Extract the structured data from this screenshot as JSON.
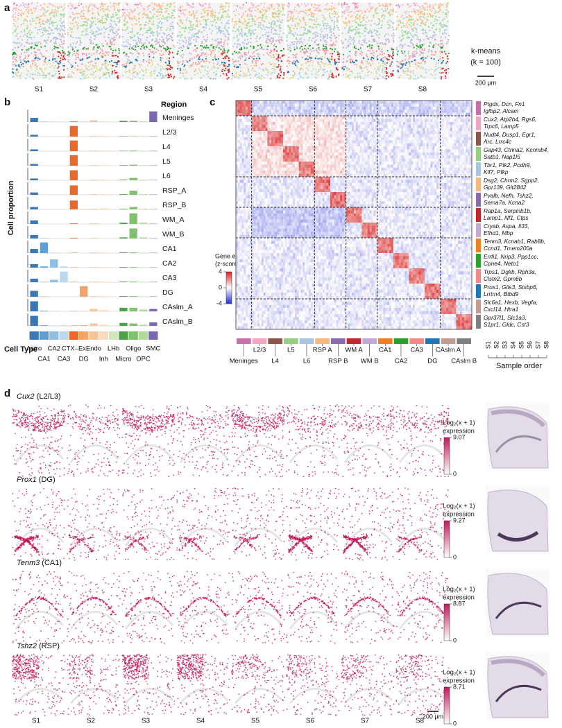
{
  "panel_labels": [
    "a",
    "b",
    "c",
    "d"
  ],
  "samples": [
    "S1",
    "S2",
    "S3",
    "S4",
    "S5",
    "S6",
    "S7",
    "S8"
  ],
  "panel_a": {
    "method_lines": [
      "k-means",
      "(k = 100)"
    ],
    "scale": "200 μm"
  },
  "panel_b": {
    "y_label": "Cell proportion",
    "region_header": "Region",
    "cell_type_header": "Cell Type",
    "regions": [
      "Meninges",
      "L2/3",
      "L4",
      "L5",
      "L6",
      "RSP_A",
      "RSP_B",
      "WM_A",
      "WM_B",
      "CA1",
      "CA2",
      "CA3",
      "DG",
      "CAslm_A",
      "CAslm_B"
    ],
    "cell_types": [
      {
        "name": "Astro",
        "color": "#3b78b4"
      },
      {
        "name": "CA1",
        "color": "#5d9fd2"
      },
      {
        "name": "CA2",
        "color": "#8fc0e4"
      },
      {
        "name": "CA3",
        "color": "#bcd8ee"
      },
      {
        "name": "CTX–Ex",
        "color": "#e8692b"
      },
      {
        "name": "DG",
        "color": "#f3a468"
      },
      {
        "name": "Endo",
        "color": "#f7c596"
      },
      {
        "name": "Inh",
        "color": "#fadcbc"
      },
      {
        "name": "LHb",
        "color": "#cfe6c0"
      },
      {
        "name": "Micro",
        "color": "#4ea14b"
      },
      {
        "name": "Oligo",
        "color": "#80c16c"
      },
      {
        "name": "OPC",
        "color": "#b2daa0"
      },
      {
        "name": "SMC",
        "color": "#7a68b0"
      }
    ],
    "ylim": [
      0,
      1
    ],
    "proportions": [
      [
        0.35,
        0.02,
        0.02,
        0.02,
        0.05,
        0.02,
        0.15,
        0.05,
        0.02,
        0.1,
        0.1,
        0.05,
        0.9
      ],
      [
        0.15,
        0,
        0,
        0,
        0.9,
        0,
        0.05,
        0.05,
        0,
        0.03,
        0.03,
        0.03,
        0.02
      ],
      [
        0.15,
        0,
        0,
        0,
        0.9,
        0,
        0.05,
        0.05,
        0,
        0.03,
        0.05,
        0.03,
        0.02
      ],
      [
        0.15,
        0,
        0,
        0,
        0.9,
        0,
        0.05,
        0.05,
        0,
        0.04,
        0.08,
        0.04,
        0.02
      ],
      [
        0.15,
        0,
        0,
        0,
        0.85,
        0,
        0.05,
        0.05,
        0,
        0.05,
        0.2,
        0.04,
        0.02
      ],
      [
        0.2,
        0,
        0,
        0,
        0.8,
        0,
        0.05,
        0.05,
        0,
        0.05,
        0.35,
        0.05,
        0.02
      ],
      [
        0.2,
        0,
        0,
        0,
        0.75,
        0.02,
        0.05,
        0.08,
        0,
        0.05,
        0.2,
        0.05,
        0.02
      ],
      [
        0.3,
        0,
        0,
        0,
        0.05,
        0,
        0.05,
        0.02,
        0,
        0.1,
        0.9,
        0.1,
        0.02
      ],
      [
        0.3,
        0.02,
        0,
        0,
        0.05,
        0,
        0.05,
        0.02,
        0,
        0.1,
        0.85,
        0.1,
        0.02
      ],
      [
        0.35,
        0.9,
        0.02,
        0.02,
        0.02,
        0,
        0.05,
        0.05,
        0,
        0.05,
        0.05,
        0.03,
        0.02
      ],
      [
        0.3,
        0.1,
        0.7,
        0.1,
        0.02,
        0,
        0.05,
        0.05,
        0,
        0.05,
        0.05,
        0.03,
        0.02
      ],
      [
        0.3,
        0.02,
        0.2,
        0.9,
        0.02,
        0,
        0.05,
        0.05,
        0,
        0.05,
        0.05,
        0.03,
        0.02
      ],
      [
        0.5,
        0.02,
        0,
        0.02,
        0,
        0.9,
        0.05,
        0.05,
        0,
        0.05,
        0.05,
        0.03,
        0.02
      ],
      [
        0.85,
        0.05,
        0.02,
        0.02,
        0.02,
        0.02,
        0.2,
        0.1,
        0,
        0.3,
        0.3,
        0.15,
        0.2
      ],
      [
        0.85,
        0.05,
        0.02,
        0.05,
        0.02,
        0.05,
        0.2,
        0.1,
        0.02,
        0.25,
        0.2,
        0.1,
        0.3
      ]
    ]
  },
  "panel_c": {
    "column_groups": [
      {
        "name": "Meninges",
        "color": "#c96fa8"
      },
      {
        "name": "L2/3",
        "color": "#f2a7bf"
      },
      {
        "name": "L4",
        "color": "#8c564b"
      },
      {
        "name": "L5",
        "color": "#98cf85"
      },
      {
        "name": "L6",
        "color": "#a9c5e2"
      },
      {
        "name": "RSP A",
        "color": "#f5b880"
      },
      {
        "name": "RSP B",
        "color": "#8a6bb0"
      },
      {
        "name": "WM A",
        "color": "#c0262c"
      },
      {
        "name": "WM B",
        "color": "#c4a8d6"
      },
      {
        "name": "CA1",
        "color": "#f07f22"
      },
      {
        "name": "CA2",
        "color": "#2ca02c"
      },
      {
        "name": "CA3",
        "color": "#f28a8a"
      },
      {
        "name": "DG",
        "color": "#1f77b4"
      },
      {
        "name": "CAslm A",
        "color": "#c49c94"
      },
      {
        "name": "CAslm B",
        "color": "#7f7f7f"
      }
    ],
    "gene_groups": [
      [
        "Ptgds, Dcn, Fn1",
        "Igfbp2, Alcam"
      ],
      [
        "Cux2, Atp2b4, Rgs6,",
        "Trpc6, Lamp5"
      ],
      [
        "Nudt4, Dusp1, Egr1,",
        "Arc, Lrrc4c"
      ],
      [
        "Gap43, Ctnna2, Kcnmb4,",
        "Satb1, Nap1l5"
      ],
      [
        "Tbr1, Ptk2, Pcdh9,",
        "Klf7, Pfkp"
      ],
      [
        "Dsg2, Chrm2, Sgpp2,",
        "Gpr139, Glt28d2"
      ],
      [
        "Pvalb, Nefh, Tshz2,",
        "Sema7a, Kcna2"
      ],
      [
        "Rap1a, Serpinb1b,",
        "Lamp1, Nf1, Ctps"
      ],
      [
        "Cryab, Aspa, Il33,",
        "Efhd1, Mbp"
      ],
      [
        "Tenm3, Kcnab1, Rab8b,",
        "Ccnd1, Tmem200a"
      ],
      [
        "Errfi1, Nrip3, Ppp1cc,",
        "Cpne4, Neto1"
      ],
      [
        "Trps1, Dgkb, Rph3a,",
        "Clstn2, Gpm6b"
      ],
      [
        "Prox1, Glis3, Stxbp6,",
        "Lrrtm4, Btbd9"
      ],
      [
        "Slc6a1, Hexb, Vegfa,",
        "Cxcl14, Htra1"
      ],
      [
        "Gpr37l1, Slc1a3,",
        "S1pr1, Gldc, Cst3"
      ]
    ],
    "colorbar": {
      "title": [
        "Gene exp.",
        "(z-score)"
      ],
      "ticks": [
        4,
        0,
        -4
      ],
      "colors": [
        "#1f2bd6",
        "#ffffff",
        "#d62020"
      ]
    },
    "sample_order_label": "Sample order"
  },
  "panel_d": {
    "colorbar_title": [
      "Log₂(x + 1)",
      "expression"
    ],
    "colors": [
      "#ffffff",
      "#c2185b"
    ],
    "rows": [
      {
        "gene": "Cux2",
        "region": " (L2/L3)",
        "colorbar_ticks": [
          0,
          9.07
        ]
      },
      {
        "gene": "Prox1",
        "region": " (DG)",
        "colorbar_ticks": [
          0,
          9.27
        ]
      },
      {
        "gene": "Tenm3",
        "region": " (CA1)",
        "colorbar_ticks": [
          0,
          8.87
        ]
      },
      {
        "gene": "Tshz2",
        "region": " (RSP)",
        "colorbar_ticks": [
          0,
          8.71
        ]
      }
    ],
    "scale": "200 μm"
  }
}
